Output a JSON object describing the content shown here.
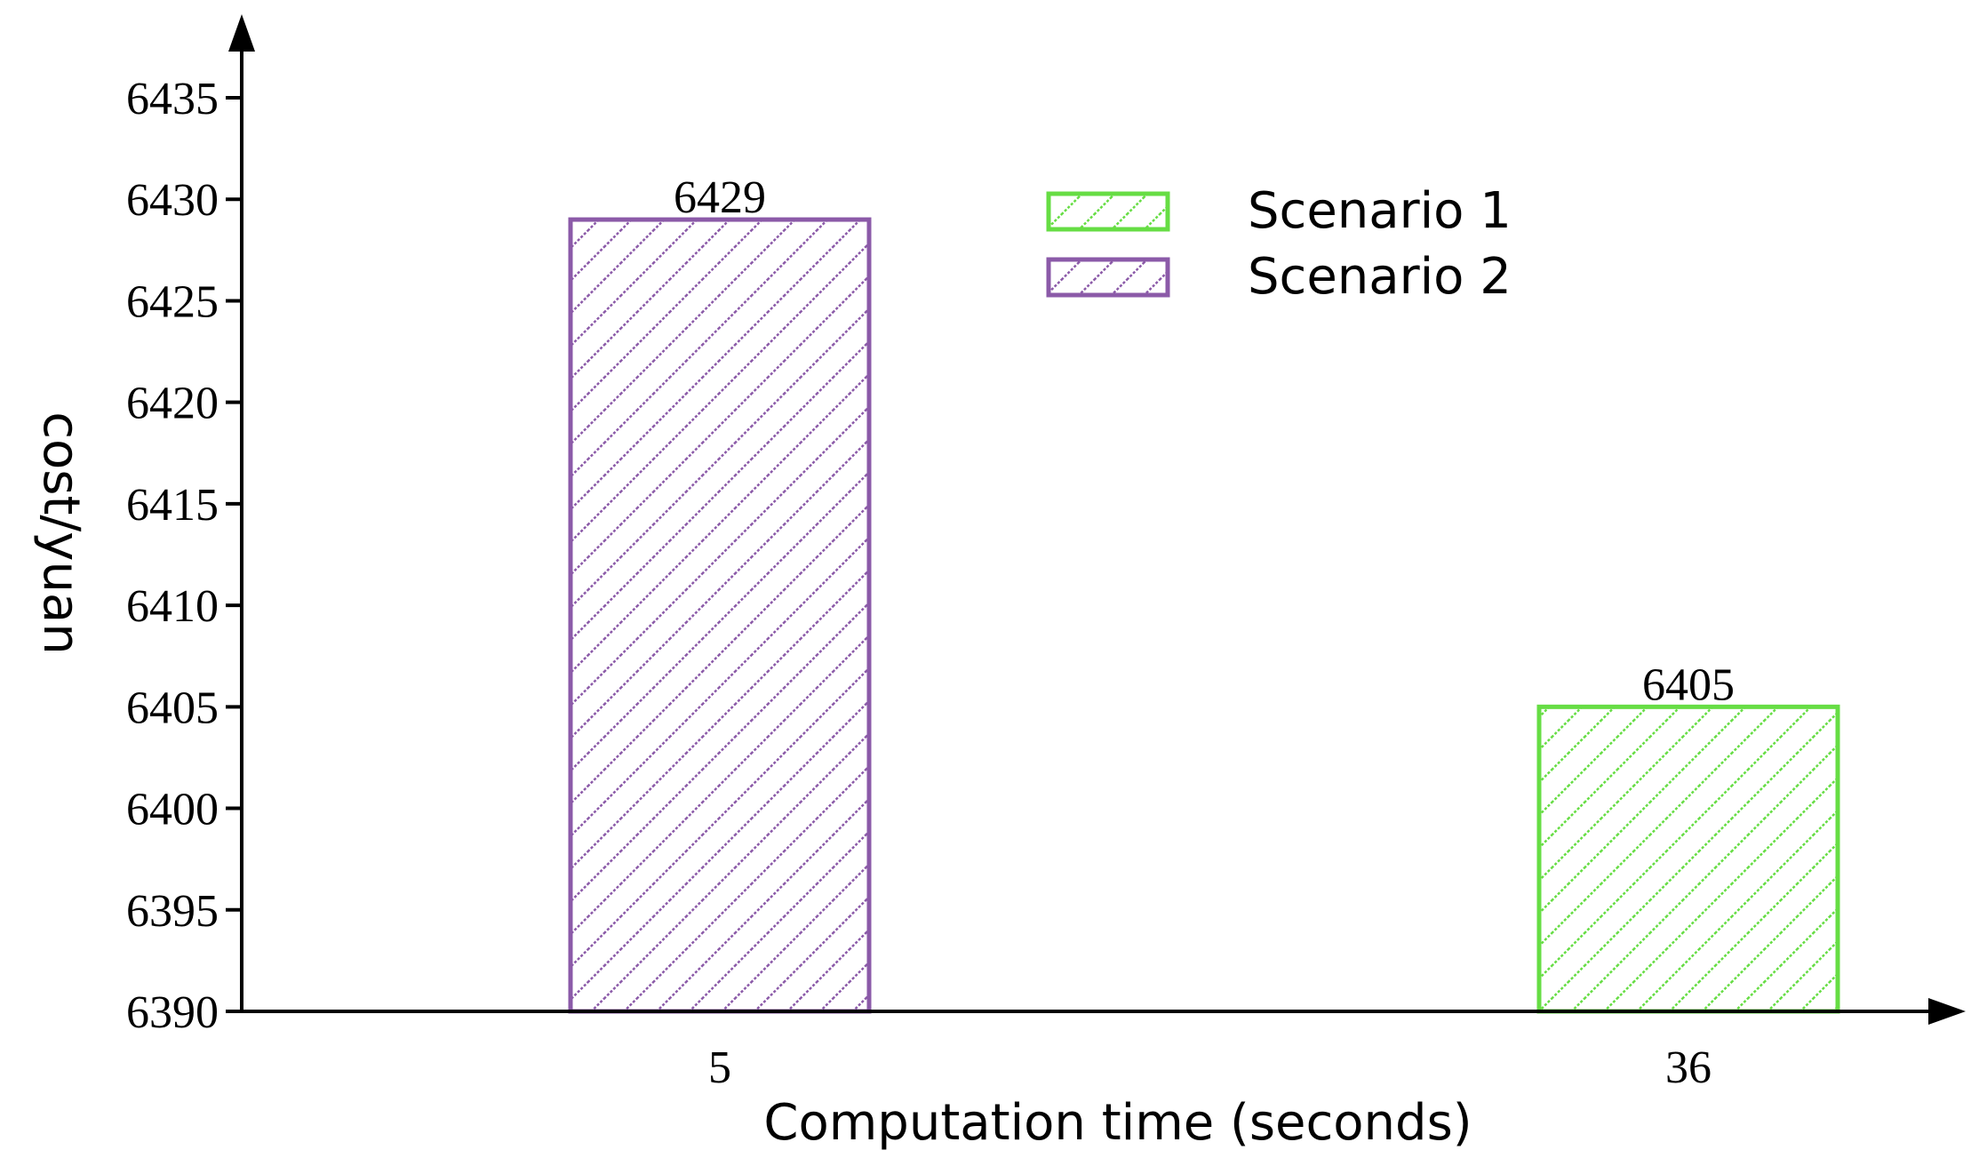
{
  "chart_data": {
    "type": "bar",
    "title": "",
    "xlabel": "Computation time (seconds)",
    "ylabel": "cost/yuan",
    "categories": [
      "5",
      "36"
    ],
    "bars": [
      {
        "category": "5",
        "value": 6429,
        "series": "Scenario 2",
        "label": "6429"
      },
      {
        "category": "36",
        "value": 6405,
        "series": "Scenario 1",
        "label": "6405"
      }
    ],
    "series": [
      {
        "name": "Scenario 1",
        "color": "#66dd44",
        "pattern": "diagonal-hatch"
      },
      {
        "name": "Scenario 2",
        "color": "#8b5aa8",
        "pattern": "diagonal-hatch"
      }
    ],
    "ylim": [
      6390,
      6435
    ],
    "yticks": [
      "6390",
      "6395",
      "6400",
      "6405",
      "6410",
      "6415",
      "6420",
      "6425",
      "6430",
      "6435"
    ],
    "grid": false,
    "legend_position": "top-right"
  }
}
